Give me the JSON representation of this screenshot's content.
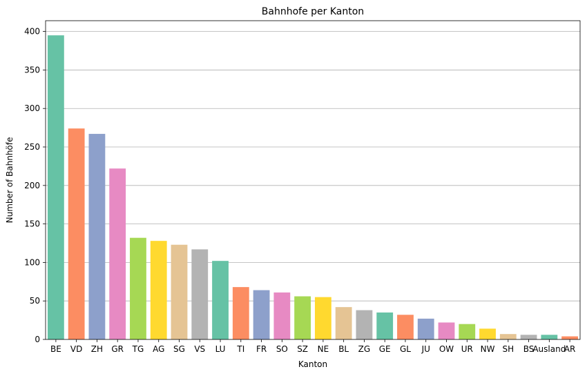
{
  "chart_data": {
    "type": "bar",
    "title": "Bahnhofe per Kanton",
    "xlabel": "Kanton",
    "ylabel": "Number of Bahnhöfe",
    "categories": [
      "BE",
      "VD",
      "ZH",
      "GR",
      "TG",
      "AG",
      "SG",
      "VS",
      "LU",
      "TI",
      "FR",
      "SO",
      "SZ",
      "NE",
      "BL",
      "ZG",
      "GE",
      "GL",
      "JU",
      "OW",
      "UR",
      "NW",
      "SH",
      "BS",
      "Ausland",
      "AR"
    ],
    "values": [
      395,
      274,
      267,
      222,
      132,
      128,
      123,
      117,
      102,
      68,
      64,
      61,
      56,
      55,
      42,
      38,
      35,
      32,
      27,
      22,
      20,
      14,
      7,
      6,
      6,
      4
    ],
    "ylim": [
      0,
      414
    ],
    "yticks": [
      0,
      50,
      100,
      150,
      200,
      250,
      300,
      350,
      400
    ],
    "grid": "y-axis horizontal lines",
    "palette": [
      "#66c2a5",
      "#fc8d62",
      "#8da0cb",
      "#e78ac3",
      "#a6d854",
      "#ffd92f",
      "#e5c494",
      "#b3b3b3"
    ]
  }
}
